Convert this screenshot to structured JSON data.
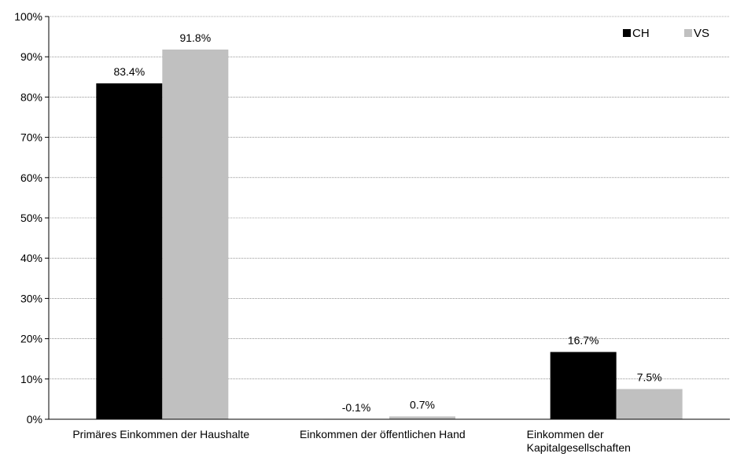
{
  "chart_data": {
    "type": "bar",
    "categories": [
      "Primäres Einkommen der Haushalte",
      "Einkommen der öffentlichen Hand",
      "Einkommen der Kapitalgesellschaften"
    ],
    "category_label_lines": [
      [
        "Primäres Einkommen der Haushalte"
      ],
      [
        "Einkommen der öffentlichen Hand"
      ],
      [
        "Einkommen der",
        "Kapitalgesellschaften"
      ]
    ],
    "series": [
      {
        "name": "CH",
        "color": "#000000",
        "values": [
          83.4,
          -0.1,
          16.7
        ],
        "labels": [
          "83.4%",
          "-0.1%",
          "16.7%"
        ]
      },
      {
        "name": "VS",
        "color": "#c0c0c0",
        "values": [
          91.8,
          0.7,
          7.5
        ],
        "labels": [
          "91.8%",
          "0.7%",
          "7.5%"
        ]
      }
    ],
    "ylim": [
      0,
      100
    ],
    "yticks": [
      0,
      10,
      20,
      30,
      40,
      50,
      60,
      70,
      80,
      90,
      100
    ],
    "ytick_labels": [
      "0%",
      "10%",
      "20%",
      "30%",
      "40%",
      "50%",
      "60%",
      "70%",
      "80%",
      "90%",
      "100%"
    ],
    "grid": true,
    "legend": "top-right",
    "title": "",
    "xlabel": "",
    "ylabel": ""
  }
}
